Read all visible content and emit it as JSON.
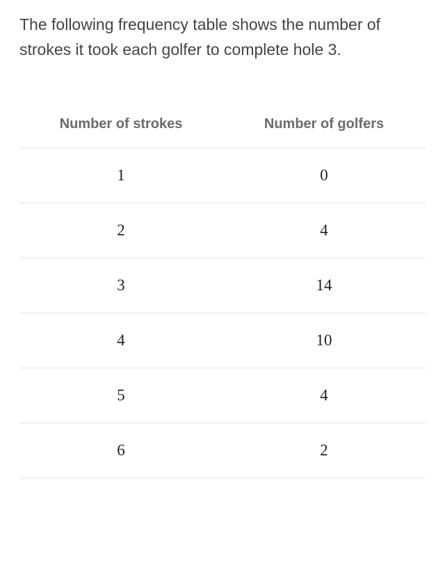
{
  "description": "The following frequency table shows the number of strokes it took each golfer to complete hole 3.",
  "table": {
    "type": "table",
    "columns": [
      "Number of strokes",
      "Number of golfers"
    ],
    "rows": [
      [
        "1",
        "0"
      ],
      [
        "2",
        "4"
      ],
      [
        "3",
        "14"
      ],
      [
        "4",
        "10"
      ],
      [
        "5",
        "4"
      ],
      [
        "6",
        "2"
      ]
    ],
    "header_color": "#6b6b6b",
    "header_fontsize": 20,
    "cell_color": "#222222",
    "cell_fontsize": 23,
    "border_color": "#e4e4e4",
    "background_color": "#ffffff",
    "column_alignment": [
      "center",
      "center"
    ]
  }
}
